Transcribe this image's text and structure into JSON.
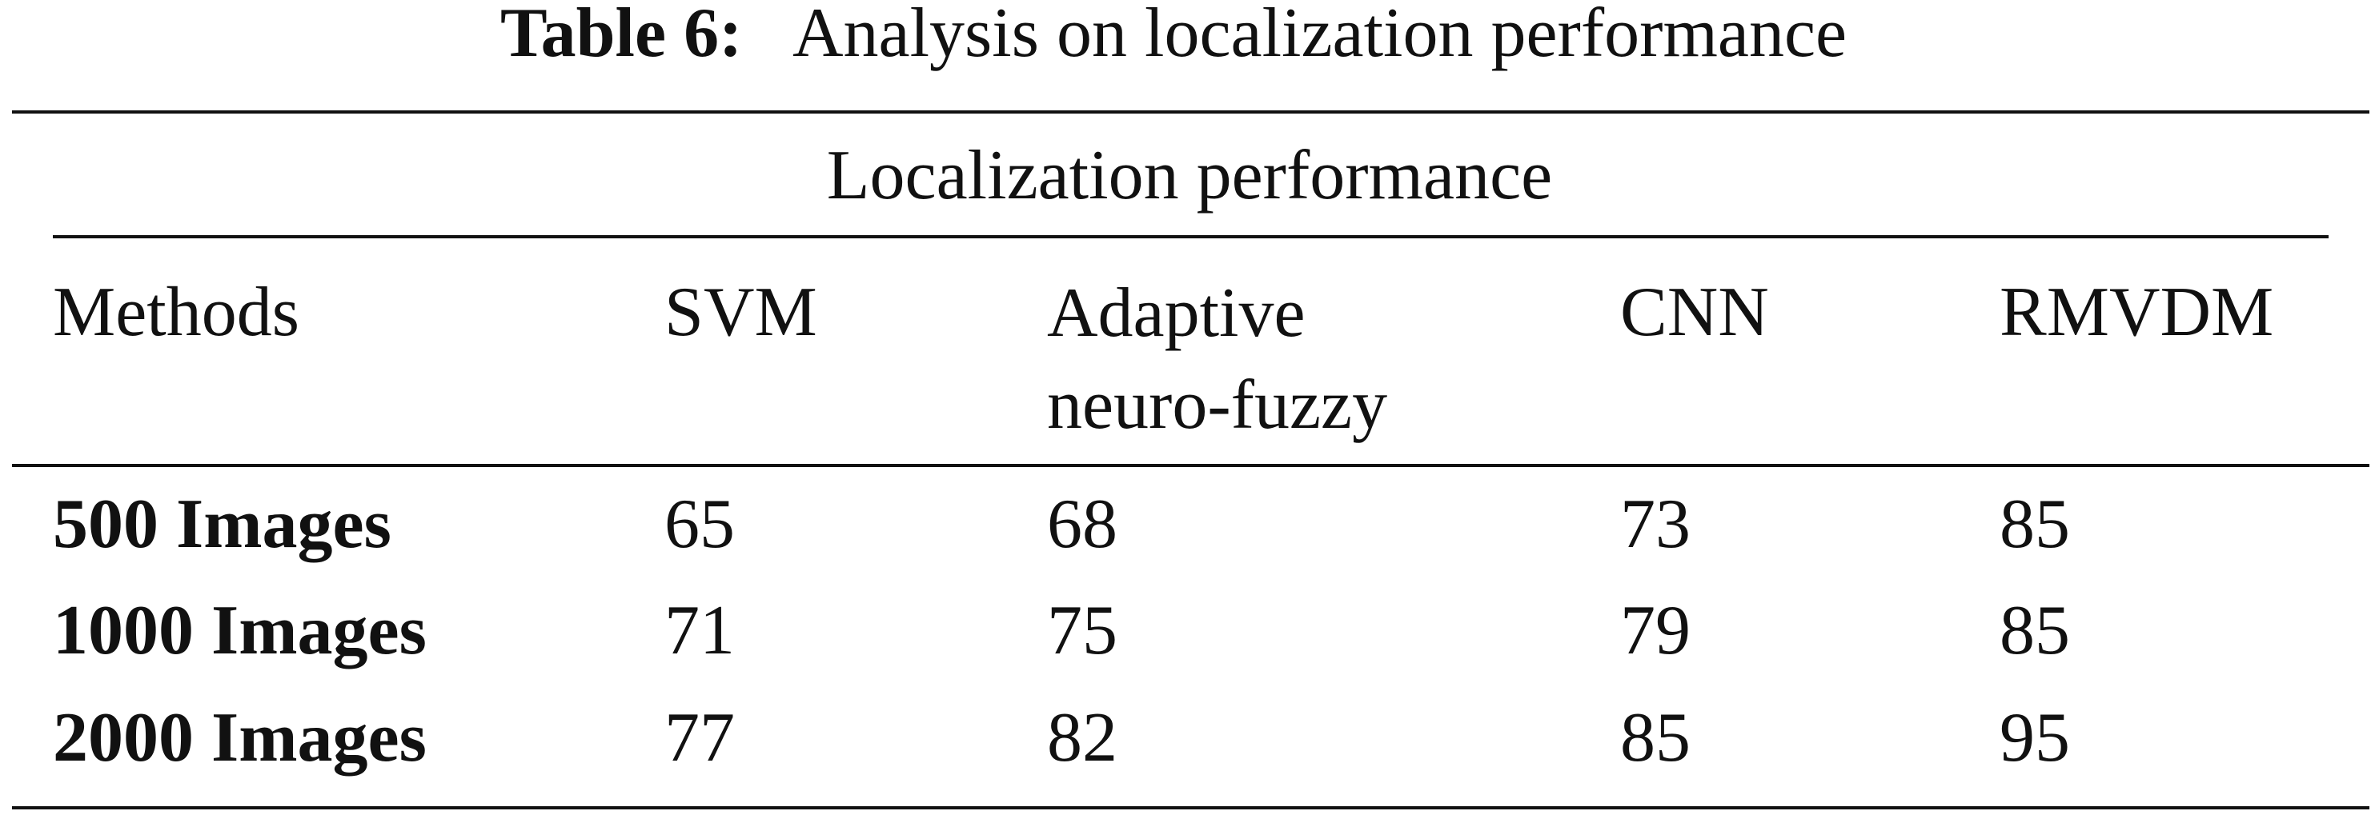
{
  "caption": {
    "label": "Table 6:",
    "text": "Analysis on localization performance"
  },
  "table": {
    "group_header": "Localization performance",
    "header": [
      "Methods",
      "SVM",
      "Adaptive neuro-fuzzy",
      "CNN",
      "RMVDM"
    ],
    "rows": [
      [
        "500 Images",
        65,
        68,
        73,
        85
      ],
      [
        "1000 Images",
        71,
        75,
        79,
        85
      ],
      [
        "2000 Images",
        77,
        82,
        85,
        95
      ]
    ]
  }
}
